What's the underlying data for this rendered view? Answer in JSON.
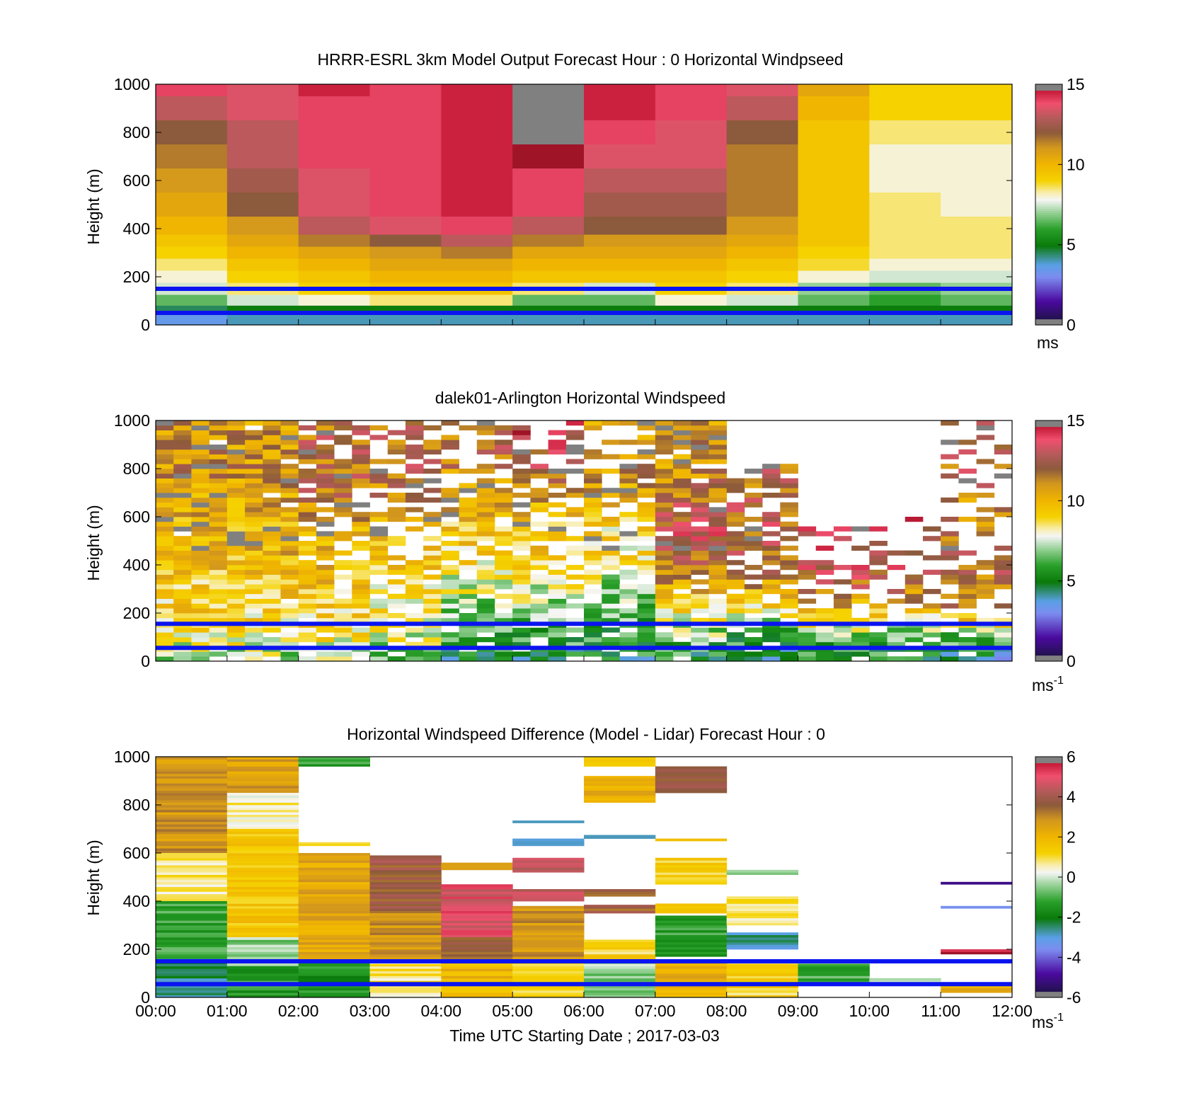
{
  "figure": {
    "xlabel": "Time UTC  Starting Date ; 2017-03-03",
    "x_ticks": [
      "00:00",
      "01:00",
      "02:00",
      "03:00",
      "04:00",
      "05:00",
      "06:00",
      "07:00",
      "08:00",
      "09:00",
      "10:00",
      "11:00",
      "12:00"
    ]
  },
  "colors": {
    "pbl_line": "#0a14f0",
    "missing": "#ffffff",
    "colorbar_edge": "#808080",
    "colormap": [
      [
        0.0,
        "#141432"
      ],
      [
        0.1,
        "#4b0aa0"
      ],
      [
        0.2,
        "#7c8cf0"
      ],
      [
        0.25,
        "#5aa0e6"
      ],
      [
        0.33,
        "#0a7a0a"
      ],
      [
        0.4,
        "#2aa02a"
      ],
      [
        0.47,
        "#9ad29a"
      ],
      [
        0.52,
        "#f5f5f5"
      ],
      [
        0.55,
        "#f8eeb0"
      ],
      [
        0.6,
        "#f5d200"
      ],
      [
        0.67,
        "#f0b400"
      ],
      [
        0.74,
        "#d2961e"
      ],
      [
        0.8,
        "#8c5a3c"
      ],
      [
        0.86,
        "#b45a5a"
      ],
      [
        0.92,
        "#f0506e"
      ],
      [
        0.97,
        "#c81e3c"
      ],
      [
        1.0,
        "#a01428"
      ]
    ]
  },
  "chart_data": [
    {
      "type": "heatmap",
      "title": "HRRR-ESRL 3km Model Output   Forecast Hour : 0 Horizontal Windpseed",
      "ylabel": "Height (m)",
      "x_ticks": [
        "00:00",
        "01:00",
        "02:00",
        "03:00",
        "04:00",
        "05:00",
        "06:00",
        "07:00",
        "08:00",
        "09:00",
        "10:00",
        "11:00",
        "12:00"
      ],
      "y_ticks": [
        "0",
        "200",
        "400",
        "600",
        "800",
        "1000"
      ],
      "ylim": [
        0,
        1000
      ],
      "colorbar": {
        "ticks": [
          "0",
          "5",
          "10",
          "15"
        ],
        "range": [
          0,
          15
        ],
        "unit": "ms"
      },
      "pbl_lines_m": [
        150,
        50
      ],
      "heights_m": [
        1000,
        900,
        800,
        700,
        600,
        500,
        400,
        350,
        300,
        250,
        200,
        150,
        100,
        60,
        30
      ],
      "columns": [
        {
          "time": "00:00",
          "profile": [
            14,
            13,
            12,
            11.5,
            11,
            10.5,
            10,
            9.5,
            9,
            8.5,
            8,
            7.5,
            6.5,
            4.5,
            3.5
          ]
        },
        {
          "time": "01:00",
          "profile": [
            13.5,
            13.5,
            13,
            13,
            12.5,
            12,
            11,
            10.5,
            10,
            9.5,
            9,
            8.5,
            7.5,
            5,
            4
          ]
        },
        {
          "time": "02:00",
          "profile": [
            14.5,
            14,
            14,
            14,
            13.5,
            13.5,
            13,
            11.5,
            10.5,
            10,
            9.5,
            9,
            8,
            5,
            4
          ]
        },
        {
          "time": "03:00",
          "profile": [
            14,
            14,
            14,
            14,
            14,
            14,
            13.5,
            12,
            11,
            10.5,
            10,
            9.5,
            8.5,
            5,
            4
          ]
        },
        {
          "time": "04:00",
          "profile": [
            14.5,
            14.5,
            14.5,
            14.5,
            14.5,
            14.5,
            14,
            13,
            11.5,
            10.5,
            10,
            9.5,
            8.5,
            5,
            4
          ]
        },
        {
          "time": "05:00",
          "profile": [
            null,
            null,
            null,
            15,
            14,
            14,
            13,
            11.5,
            10.5,
            10,
            9.5,
            8.5,
            6.5,
            5,
            4
          ]
        },
        {
          "time": "06:00",
          "profile": [
            14.5,
            14.5,
            14,
            13.5,
            13,
            12.5,
            12,
            11,
            10.5,
            10,
            9.5,
            7.5,
            6.5,
            5,
            4
          ]
        },
        {
          "time": "07:00",
          "profile": [
            14,
            14,
            13.5,
            13.5,
            13,
            12.5,
            12,
            11,
            10.5,
            10,
            9.5,
            9,
            8,
            5,
            4
          ]
        },
        {
          "time": "08:00",
          "profile": [
            13.5,
            13,
            12,
            11.5,
            11.5,
            11.5,
            11,
            10.5,
            10,
            9.5,
            9,
            8.5,
            7.5,
            5,
            4
          ]
        },
        {
          "time": "09:00",
          "profile": [
            10.5,
            10,
            9.5,
            9.5,
            9.5,
            9.5,
            9.5,
            9.5,
            9,
            8.8,
            8,
            7,
            6.5,
            5,
            4
          ]
        },
        {
          "time": "10:00",
          "profile": [
            9,
            9,
            8.5,
            8,
            8,
            8.5,
            8.5,
            8.5,
            8.5,
            8,
            7.5,
            6.5,
            6,
            5,
            4
          ]
        },
        {
          "time": "11:00",
          "profile": [
            9,
            9,
            8.5,
            8,
            8,
            8,
            8.5,
            8.5,
            8.5,
            8,
            7.5,
            7,
            6.5,
            5,
            4
          ]
        }
      ]
    },
    {
      "type": "heatmap",
      "title": "dalek01-Arlington  Horizontal Windspeed",
      "ylabel": "Height (m)",
      "x_ticks": [
        "00:00",
        "01:00",
        "02:00",
        "03:00",
        "04:00",
        "05:00",
        "06:00",
        "07:00",
        "08:00",
        "09:00",
        "10:00",
        "11:00",
        "12:00"
      ],
      "y_ticks": [
        "0",
        "200",
        "400",
        "600",
        "800",
        "1000"
      ],
      "ylim": [
        0,
        1000
      ],
      "colorbar": {
        "ticks": [
          "0",
          "5",
          "10",
          "15"
        ],
        "range": [
          0,
          15
        ],
        "unit": "ms",
        "unit_exponent": "-1"
      },
      "pbl_lines_m": [
        155,
        55
      ],
      "sampling": {
        "columns_per_hour": 4,
        "bin_m": 20
      },
      "hourly_speed_profile_top_to_surface": [
        {
          "time": "00:00",
          "profile": [
            11,
            11,
            11,
            10.5,
            10,
            10,
            9.5,
            9,
            8.5,
            7
          ]
        },
        {
          "time": "01:00",
          "profile": [
            11,
            11,
            11,
            10.5,
            10,
            10,
            9.5,
            9,
            8.5,
            7
          ]
        },
        {
          "time": "02:00",
          "profile": [
            12,
            12,
            12,
            11.5,
            10.5,
            10,
            9.5,
            9,
            8.5,
            7
          ]
        },
        {
          "time": "03:00",
          "profile": [
            12,
            12,
            12,
            11,
            10,
            9.5,
            9,
            8.5,
            8,
            6.5
          ]
        },
        {
          "time": "04:00",
          "profile": [
            12,
            12,
            11,
            10.5,
            9.5,
            9,
            8,
            7,
            6,
            5
          ]
        },
        {
          "time": "05:00",
          "profile": [
            14,
            13,
            12,
            10.5,
            9.5,
            9,
            8,
            7,
            6,
            5
          ]
        },
        {
          "time": "06:00",
          "profile": [
            11,
            11,
            11,
            10,
            9,
            8.5,
            7.5,
            6.5,
            6,
            5
          ]
        },
        {
          "time": "07:00",
          "profile": [
            11,
            11,
            11,
            12,
            13,
            12.5,
            11,
            9,
            7,
            5
          ]
        },
        {
          "time": "08:00",
          "profile": [
            12,
            12,
            12,
            12,
            12.5,
            12,
            11,
            9,
            6,
            4.5
          ]
        },
        {
          "time": "09:00",
          "profile": [
            12,
            12,
            12,
            13,
            13.5,
            13,
            12.5,
            10,
            7,
            5
          ]
        },
        {
          "time": "10:00",
          "profile": [
            12,
            12,
            12,
            13,
            13.5,
            13,
            12.5,
            10,
            7,
            5
          ]
        },
        {
          "time": "11:00",
          "profile": [
            13,
            13,
            12,
            11,
            11.5,
            12,
            12,
            11,
            7,
            4
          ]
        }
      ],
      "hourly_data_top_m": [
        {
          "time": "00:00",
          "top": 1000
        },
        {
          "time": "01:00",
          "top": 1000
        },
        {
          "time": "02:00",
          "top": 1000
        },
        {
          "time": "03:00",
          "top": 1000
        },
        {
          "time": "04:00",
          "top": 1000
        },
        {
          "time": "05:00",
          "top": 1000
        },
        {
          "time": "06:00",
          "top": 1000
        },
        {
          "time": "07:00",
          "top": 1000
        },
        {
          "time": "08:00",
          "top": 820
        },
        {
          "time": "09:00",
          "top": 560
        },
        {
          "time": "10:00",
          "top": 600
        },
        {
          "time": "11:00",
          "top": 1000
        }
      ],
      "hourly_fill_fraction": [
        {
          "time": "00:00",
          "fill": 0.98
        },
        {
          "time": "01:00",
          "fill": 0.95
        },
        {
          "time": "02:00",
          "fill": 0.82
        },
        {
          "time": "03:00",
          "fill": 0.66
        },
        {
          "time": "04:00",
          "fill": 0.72
        },
        {
          "time": "05:00",
          "fill": 0.66
        },
        {
          "time": "06:00",
          "fill": 0.72
        },
        {
          "time": "07:00",
          "fill": 0.9
        },
        {
          "time": "08:00",
          "fill": 0.68
        },
        {
          "time": "09:00",
          "fill": 0.4
        },
        {
          "time": "10:00",
          "fill": 0.32
        },
        {
          "time": "11:00",
          "fill": 0.45
        }
      ],
      "missing_bins_m": 0
    },
    {
      "type": "heatmap",
      "title": "Horizontal Windspeed Difference (Model - Lidar) Forecast Hour : 0",
      "ylabel": "Height (m)",
      "xlabel": "Time UTC  Starting Date ; 2017-03-03",
      "x_ticks": [
        "00:00",
        "01:00",
        "02:00",
        "03:00",
        "04:00",
        "05:00",
        "06:00",
        "07:00",
        "08:00",
        "09:00",
        "10:00",
        "11:00",
        "12:00"
      ],
      "y_ticks": [
        "0",
        "200",
        "400",
        "600",
        "800",
        "1000"
      ],
      "ylim": [
        0,
        1000
      ],
      "colorbar": {
        "ticks": [
          "-6",
          "-4",
          "-2",
          "0",
          "2",
          "4",
          "6"
        ],
        "range": [
          -6,
          6
        ],
        "unit": "ms",
        "unit_exponent": "-1"
      },
      "pbl_lines_m": [
        150,
        55
      ],
      "segments": [
        {
          "time": "00:00",
          "from": 600,
          "to": 1000,
          "value": 2.8
        },
        {
          "time": "00:00",
          "from": 400,
          "to": 600,
          "value": 0.7
        },
        {
          "time": "00:00",
          "from": 160,
          "to": 400,
          "value": -1.2
        },
        {
          "time": "00:00",
          "from": 0,
          "to": 160,
          "value": -2.5
        },
        {
          "time": "01:00",
          "from": 850,
          "to": 1000,
          "value": 2.6
        },
        {
          "time": "01:00",
          "from": 700,
          "to": 850,
          "value": 0.6
        },
        {
          "time": "01:00",
          "from": 250,
          "to": 700,
          "value": 1.6
        },
        {
          "time": "01:00",
          "from": 130,
          "to": 250,
          "value": -0.4
        },
        {
          "time": "01:00",
          "from": 0,
          "to": 130,
          "value": -1.3
        },
        {
          "time": "02:00",
          "from": 960,
          "to": 1000,
          "value": -1.2
        },
        {
          "time": "02:00",
          "from": 630,
          "to": 645,
          "value": 1.2
        },
        {
          "time": "02:00",
          "from": 150,
          "to": 600,
          "value": 2.4
        },
        {
          "time": "02:00",
          "from": 0,
          "to": 150,
          "value": -1.5
        },
        {
          "time": "03:00",
          "from": 350,
          "to": 590,
          "value": 3.8
        },
        {
          "time": "03:00",
          "from": 150,
          "to": 350,
          "value": 2.8
        },
        {
          "time": "03:00",
          "from": 0,
          "to": 150,
          "value": 0.8
        },
        {
          "time": "04:00",
          "from": 530,
          "to": 560,
          "value": 3
        },
        {
          "time": "04:00",
          "from": 250,
          "to": 470,
          "value": 4.8
        },
        {
          "time": "04:00",
          "from": 150,
          "to": 250,
          "value": 3.5
        },
        {
          "time": "04:00",
          "from": 0,
          "to": 150,
          "value": 2
        },
        {
          "time": "05:00",
          "from": 725,
          "to": 735,
          "value": -3
        },
        {
          "time": "05:00",
          "from": 630,
          "to": 660,
          "value": -2.5
        },
        {
          "time": "05:00",
          "from": 520,
          "to": 580,
          "value": 4.4
        },
        {
          "time": "05:00",
          "from": 400,
          "to": 450,
          "value": 4.4
        },
        {
          "time": "05:00",
          "from": 150,
          "to": 380,
          "value": 2.8
        },
        {
          "time": "05:00",
          "from": 0,
          "to": 150,
          "value": 1.2
        },
        {
          "time": "06:00",
          "from": 960,
          "to": 1000,
          "value": 1.6
        },
        {
          "time": "06:00",
          "from": 810,
          "to": 920,
          "value": 2.2
        },
        {
          "time": "06:00",
          "from": 660,
          "to": 675,
          "value": -2.6
        },
        {
          "time": "06:00",
          "from": 420,
          "to": 450,
          "value": 3.6
        },
        {
          "time": "06:00",
          "from": 350,
          "to": 385,
          "value": 3.6
        },
        {
          "time": "06:00",
          "from": 150,
          "to": 240,
          "value": 1.2
        },
        {
          "time": "06:00",
          "from": 0,
          "to": 150,
          "value": -0.4
        },
        {
          "time": "07:00",
          "from": 850,
          "to": 960,
          "value": 3.6
        },
        {
          "time": "07:00",
          "from": 650,
          "to": 660,
          "value": 1.6
        },
        {
          "time": "07:00",
          "from": 470,
          "to": 580,
          "value": 1.2
        },
        {
          "time": "07:00",
          "from": 350,
          "to": 390,
          "value": 1.2
        },
        {
          "time": "07:00",
          "from": 170,
          "to": 340,
          "value": -1.2
        },
        {
          "time": "07:00",
          "from": 0,
          "to": 150,
          "value": 2.2
        },
        {
          "time": "08:00",
          "from": 510,
          "to": 530,
          "value": -0.6
        },
        {
          "time": "08:00",
          "from": 300,
          "to": 420,
          "value": 0.8
        },
        {
          "time": "08:00",
          "from": 200,
          "to": 270,
          "value": -2.6
        },
        {
          "time": "08:00",
          "from": 0,
          "to": 140,
          "value": 1.2
        },
        {
          "time": "09:00",
          "from": 60,
          "to": 140,
          "value": -1
        },
        {
          "time": "10:00",
          "from": 60,
          "to": 80,
          "value": -0.2
        },
        {
          "time": "11:00",
          "from": 470,
          "to": 480,
          "value": -5.6
        },
        {
          "time": "11:00",
          "from": 370,
          "to": 380,
          "value": -3.5
        },
        {
          "time": "11:00",
          "from": 180,
          "to": 200,
          "value": 5.8
        },
        {
          "time": "11:00",
          "from": 20,
          "to": 60,
          "value": 2.2
        }
      ]
    }
  ]
}
